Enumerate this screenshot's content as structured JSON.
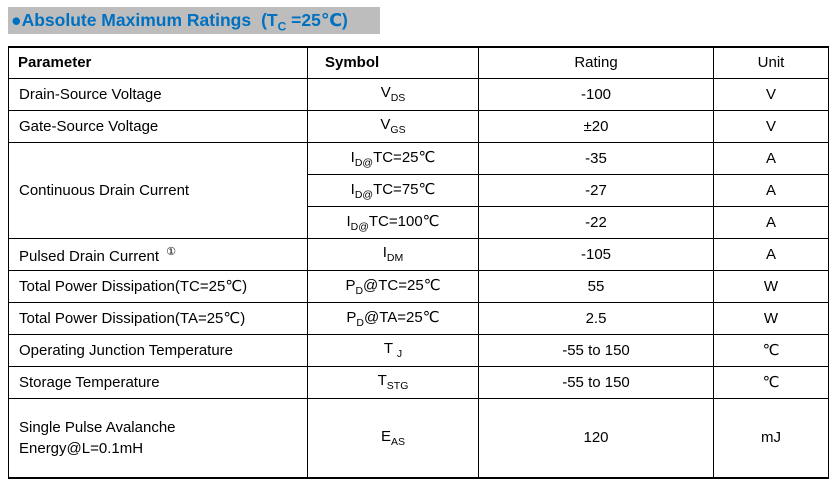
{
  "page": {
    "colors": {
      "title_text": "#0070c0",
      "title_background": "#bdbdbd",
      "table_border": "#000000",
      "body_background": "#ffffff"
    },
    "title": {
      "bullet": "●",
      "text": "Absolute Maximum Ratings",
      "cond_pre": "(T",
      "cond_sub": "C",
      "cond_post": " =25℃)"
    }
  },
  "table": {
    "headers": {
      "parameter": "Parameter",
      "symbol": "Symbol",
      "rating": "Rating",
      "unit": "Unit"
    },
    "rows": [
      {
        "param": "Drain-Source Voltage",
        "sym_pre": "V",
        "sym_sub": "DS",
        "sym_post": "",
        "rating": "-100",
        "unit": "V"
      },
      {
        "param": "Gate-Source Voltage",
        "sym_pre": "V",
        "sym_sub": "GS",
        "sym_post": "",
        "rating": "±20",
        "unit": "V"
      },
      {
        "param": "Continuous Drain Current",
        "sym_pre": "I",
        "sym_sub": "D@",
        "sym_post": "TC=25℃",
        "rating": "-35",
        "unit": "A"
      },
      {
        "sym_pre": "I",
        "sym_sub": "D@",
        "sym_post": "TC=75℃",
        "rating": "-27",
        "unit": "A"
      },
      {
        "sym_pre": "I",
        "sym_sub": "D@",
        "sym_post": "TC=100℃",
        "rating": "-22",
        "unit": "A"
      },
      {
        "param": "Pulsed Drain Current",
        "note": "①",
        "sym_pre": "I",
        "sym_sub": "DM",
        "sym_post": "",
        "rating": "-105",
        "unit": "A"
      },
      {
        "param": "Total Power Dissipation(TC=25℃)",
        "sym_pre": "P",
        "sym_sub": "D",
        "sym_post": "@TC=25℃",
        "rating": "55",
        "unit": "W"
      },
      {
        "param": "Total Power Dissipation(TA=25℃)",
        "sym_pre": "P",
        "sym_sub": "D",
        "sym_post": "@TA=25℃",
        "rating": "2.5",
        "unit": "W"
      },
      {
        "param": "Operating Junction Temperature",
        "sym_pre": "T ",
        "sym_sub": "J",
        "sym_post": "",
        "rating": "-55 to 150",
        "unit": "℃"
      },
      {
        "param": "Storage Temperature",
        "sym_pre": "T",
        "sym_sub": "STG",
        "sym_post": "",
        "rating": "-55 to 150",
        "unit": "℃"
      },
      {
        "param": "Single Pulse Avalanche\nEnergy@L=0.1mH",
        "sym_pre": "E",
        "sym_sub": "AS",
        "sym_post": "",
        "rating": "120",
        "unit": "mJ"
      }
    ]
  }
}
